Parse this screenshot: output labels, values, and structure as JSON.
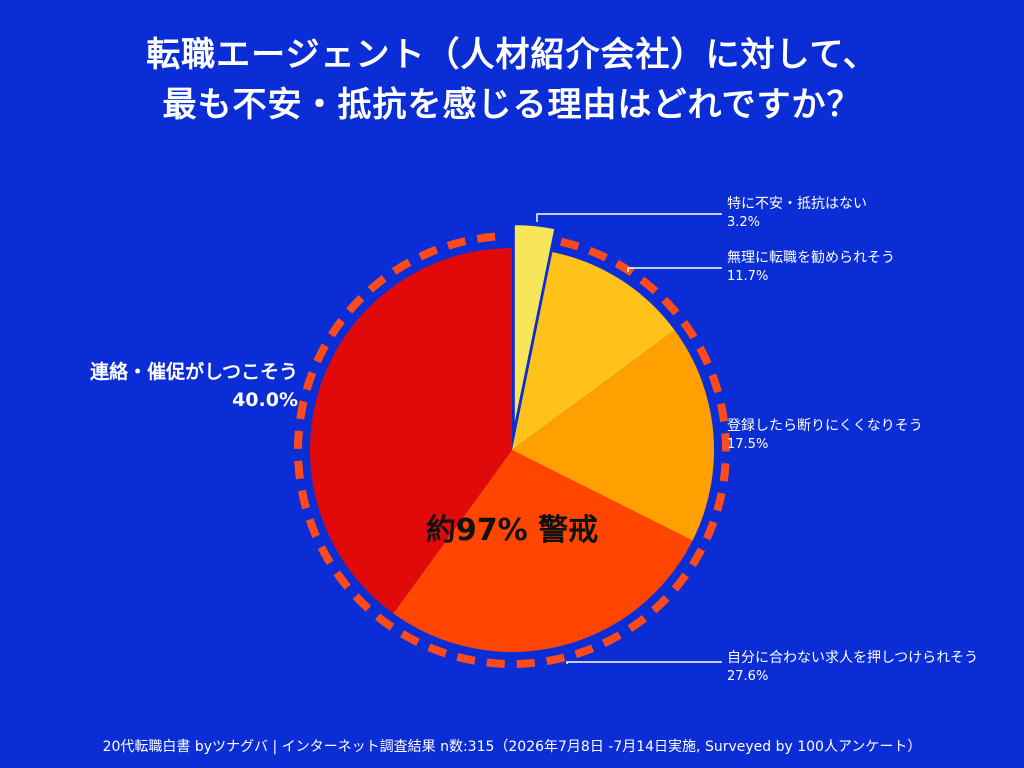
{
  "title_lines": [
    "転職エージェント（人材紹介会社）に対して、",
    "最も不安・抵抗を感じる理由はどれですか？"
  ],
  "chart_data": {
    "type": "pie",
    "slices": [
      {
        "label": "特に不安・抵抗はない",
        "value": 3.2,
        "value_label": "3.2%",
        "color": "#f7e65a"
      },
      {
        "label": "無理に転職を勧められそう",
        "value": 11.7,
        "value_label": "11.7%",
        "color": "#ffc21a"
      },
      {
        "label": "登録したら断りにくくなりそう",
        "value": 17.5,
        "value_label": "17.5%",
        "color": "#ff9f00"
      },
      {
        "label": "自分に合わない求人を押しつけられそう",
        "value": 27.6,
        "value_label": "27.6%",
        "color": "#ff4500"
      },
      {
        "label": "連絡・催促がしつこそう",
        "value": 40.0,
        "value_label": "40.0%",
        "color": "#e00a0a"
      }
    ],
    "center_annotation": "約97% 警戒",
    "exploded_slice": "特に不安・抵抗はない",
    "highlight_ring_color": "#ff4a1a"
  },
  "footer": "20代転職白書 byツナグバ | インターネット調査結果 n数:315（2026年7月8日 -7月14日実施, Surveyed by 100人アンケート）"
}
